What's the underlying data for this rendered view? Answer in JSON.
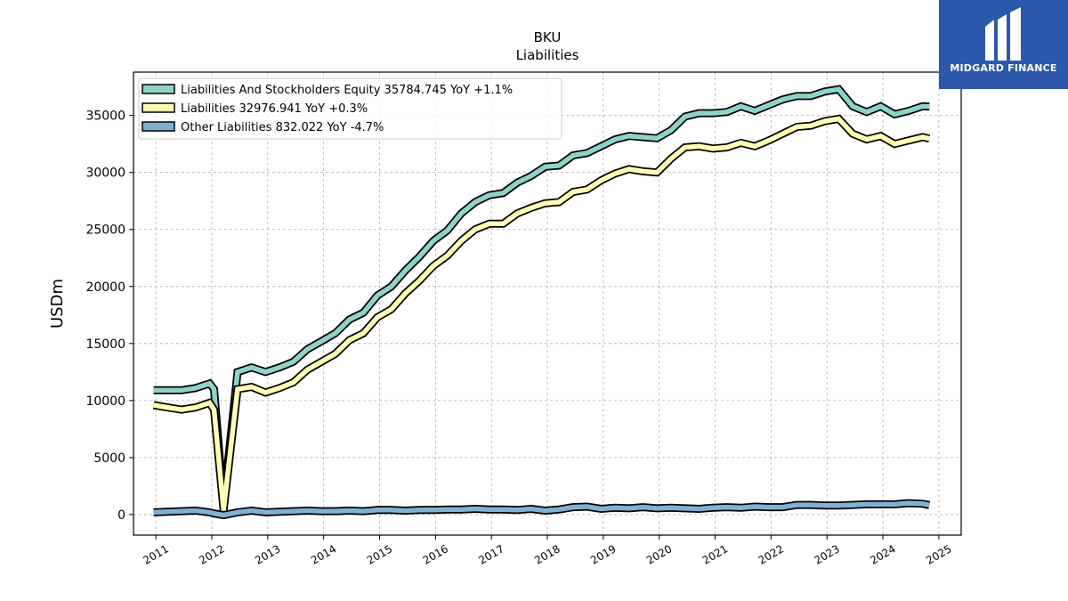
{
  "chart_data": {
    "type": "line",
    "title": "BKU",
    "subtitle": "Liabilities",
    "xlabel": "",
    "ylabel": "USDm",
    "xlim": [
      2010.6,
      2025.4
    ],
    "ylim": [
      -1800,
      38800
    ],
    "x_ticks": [
      2011,
      2012,
      2013,
      2014,
      2015,
      2016,
      2017,
      2018,
      2019,
      2020,
      2021,
      2022,
      2023,
      2024,
      2025
    ],
    "x_tick_labels": [
      "2011",
      "2012",
      "2013",
      "2014",
      "2015",
      "2016",
      "2017",
      "2018",
      "2019",
      "2020",
      "2021",
      "2022",
      "2023",
      "2024",
      "2025"
    ],
    "y_ticks": [
      0,
      5000,
      10000,
      15000,
      20000,
      25000,
      30000,
      35000
    ],
    "y_tick_labels": [
      "0",
      "5000",
      "10000",
      "15000",
      "20000",
      "25000",
      "30000",
      "35000"
    ],
    "grid": true,
    "legend_position": "top-left",
    "x": [
      2010.96,
      2011.21,
      2011.46,
      2011.71,
      2011.96,
      2012.04,
      2012.21,
      2012.46,
      2012.71,
      2012.96,
      2013.21,
      2013.46,
      2013.71,
      2013.96,
      2014.21,
      2014.46,
      2014.71,
      2014.96,
      2015.21,
      2015.46,
      2015.71,
      2015.96,
      2016.21,
      2016.46,
      2016.71,
      2016.96,
      2017.21,
      2017.46,
      2017.71,
      2017.96,
      2018.21,
      2018.46,
      2018.71,
      2018.96,
      2019.21,
      2019.46,
      2019.71,
      2019.96,
      2020.21,
      2020.46,
      2020.71,
      2020.96,
      2021.21,
      2021.46,
      2021.71,
      2021.96,
      2022.21,
      2022.46,
      2022.71,
      2022.96,
      2023.21,
      2023.46,
      2023.71,
      2023.96,
      2024.21,
      2024.46,
      2024.71,
      2024.83
    ],
    "series": [
      {
        "name": "Liabilities And Stockholders Equity",
        "legend_label": "Liabilities And Stockholders Equity  35784.745 YoY +1.1%",
        "color": "#8dd3c7",
        "values": [
          10900,
          10900,
          10900,
          11100,
          11500,
          11000,
          900,
          12500,
          12900,
          12500,
          12900,
          13400,
          14500,
          15200,
          15900,
          17100,
          17700,
          19200,
          20000,
          21400,
          22600,
          24000,
          24900,
          26400,
          27400,
          28000,
          28200,
          29100,
          29700,
          30500,
          30600,
          31500,
          31700,
          32300,
          32900,
          33200,
          33100,
          33000,
          33700,
          34900,
          35200,
          35200,
          35300,
          35800,
          35400,
          35900,
          36400,
          36700,
          36700,
          37100,
          37300,
          35800,
          35300,
          35800,
          35100,
          35400,
          35800,
          35785
        ]
      },
      {
        "name": "Liabilities",
        "legend_label": "Liabilities  32976.941 YoY +0.3%",
        "color": "#ffffb3",
        "values": [
          9600,
          9400,
          9200,
          9400,
          9800,
          9200,
          400,
          11000,
          11200,
          10700,
          11100,
          11600,
          12700,
          13400,
          14100,
          15300,
          15900,
          17300,
          18000,
          19400,
          20500,
          21800,
          22700,
          24000,
          25000,
          25500,
          25500,
          26400,
          26900,
          27300,
          27400,
          28300,
          28500,
          29300,
          29900,
          30300,
          30100,
          30000,
          31200,
          32200,
          32300,
          32100,
          32200,
          32600,
          32300,
          32800,
          33400,
          34000,
          34100,
          34500,
          34700,
          33400,
          32900,
          33200,
          32500,
          32800,
          33100,
          32977
        ]
      },
      {
        "name": "Other Liabilities",
        "legend_label": "Other Liabilities  832.022 YoY -4.7%",
        "color": "#80b1d3",
        "values": [
          200,
          250,
          300,
          350,
          200,
          100,
          -50,
          200,
          350,
          200,
          250,
          300,
          350,
          300,
          300,
          350,
          300,
          400,
          400,
          350,
          400,
          400,
          450,
          450,
          500,
          450,
          450,
          400,
          500,
          350,
          450,
          650,
          700,
          500,
          600,
          550,
          650,
          550,
          600,
          550,
          500,
          600,
          650,
          600,
          700,
          650,
          650,
          850,
          850,
          800,
          800,
          850,
          900,
          900,
          900,
          1000,
          950,
          832
        ]
      }
    ]
  }
}
